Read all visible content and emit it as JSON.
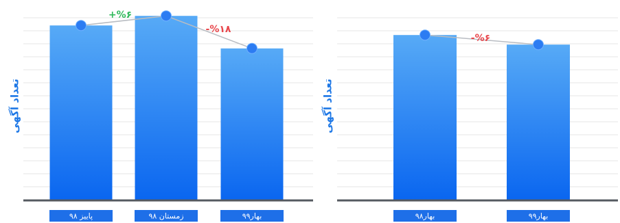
{
  "chart_data": [
    {
      "type": "bar",
      "ylabel": "تعداد آگهی",
      "ylim": [
        0,
        100
      ],
      "grid": true,
      "categories": [
        "پاییز ۹۸",
        "زمستان ۹۸",
        "بهار۹۹"
      ],
      "values": [
        91,
        96,
        79
      ],
      "changes": [
        {
          "from": 0,
          "to": 1,
          "label": "+%۶",
          "color": "#2fb85a"
        },
        {
          "from": 1,
          "to": 2,
          "label": "-%۱۸",
          "color": "#e8474c"
        }
      ]
    },
    {
      "type": "bar",
      "ylabel": "تعداد آگهی",
      "ylim": [
        0,
        100
      ],
      "grid": true,
      "categories": [
        "بهار۹۸",
        "بهار۹۹"
      ],
      "values": [
        86,
        81
      ],
      "changes": [
        {
          "from": 0,
          "to": 1,
          "label": "-%۶",
          "color": "#e8474c"
        }
      ]
    }
  ],
  "colors": {
    "bar_top": "#57aaf6",
    "bar_bottom": "#0a66f0",
    "label_bg": "#1e6fe8",
    "axis": "#555a60",
    "grid": "#e6e6e6",
    "line": "#b8bcc2",
    "point": "#2c7cf2"
  }
}
